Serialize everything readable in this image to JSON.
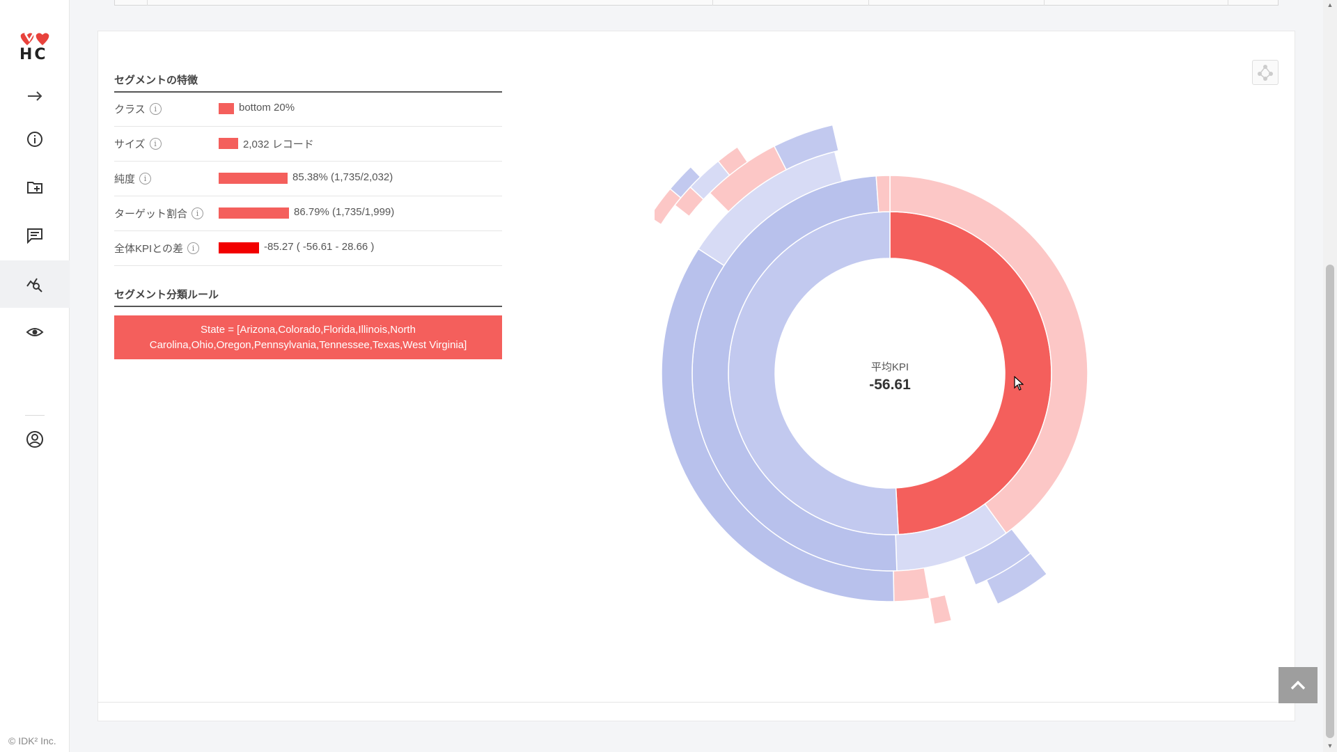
{
  "sidebar": {
    "logo_text": "HC",
    "items": [
      {
        "name": "expand",
        "icon": "arrow-right-icon"
      },
      {
        "name": "info",
        "icon": "info-icon"
      },
      {
        "name": "new-folder",
        "icon": "folder-plus-icon"
      },
      {
        "name": "comments",
        "icon": "comment-icon"
      },
      {
        "name": "analysis",
        "icon": "chart-search-icon",
        "active": true
      },
      {
        "name": "view",
        "icon": "eye-icon"
      },
      {
        "name": "account",
        "icon": "user-circle-icon"
      }
    ],
    "copyright": "© IDK² Inc."
  },
  "segment": {
    "features_title": "セグメントの特徴",
    "features": [
      {
        "label": "クラス",
        "value": "bottom 20%",
        "bar_fraction": 0.17,
        "color": "#f45f5c"
      },
      {
        "label": "サイズ",
        "value": "2,032 レコード",
        "bar_fraction": 0.24,
        "color": "#f45f5c"
      },
      {
        "label": "純度",
        "value": "85.38% (1,735/2,032)",
        "bar_fraction": 0.8538,
        "color": "#f45f5c"
      },
      {
        "label": "ターゲット割合",
        "value": "86.79% (1,735/1,999)",
        "bar_fraction": 0.8679,
        "color": "#f45f5c"
      },
      {
        "label": "全体KPIとの差",
        "value": "-85.27 ( -56.61 - 28.66 )",
        "bar_fraction": 0.5,
        "color": "#f20000"
      }
    ],
    "rules_title": "セグメント分類ルール",
    "rule": "State = [Arizona,Colorado,Florida,Illinois,North Carolina,Ohio,Oregon,Pennsylvania,Tennessee,Texas,West Virginia]"
  },
  "chart": {
    "center_title": "平均KPI",
    "center_value": "-56.61",
    "colors": {
      "red_strong": "#f45f5c",
      "red_light": "#fcc7c6",
      "blue_mid": "#b8c1ec",
      "blue_soft": "#c2c9ef",
      "blue_light": "#d7dbf5"
    }
  }
}
